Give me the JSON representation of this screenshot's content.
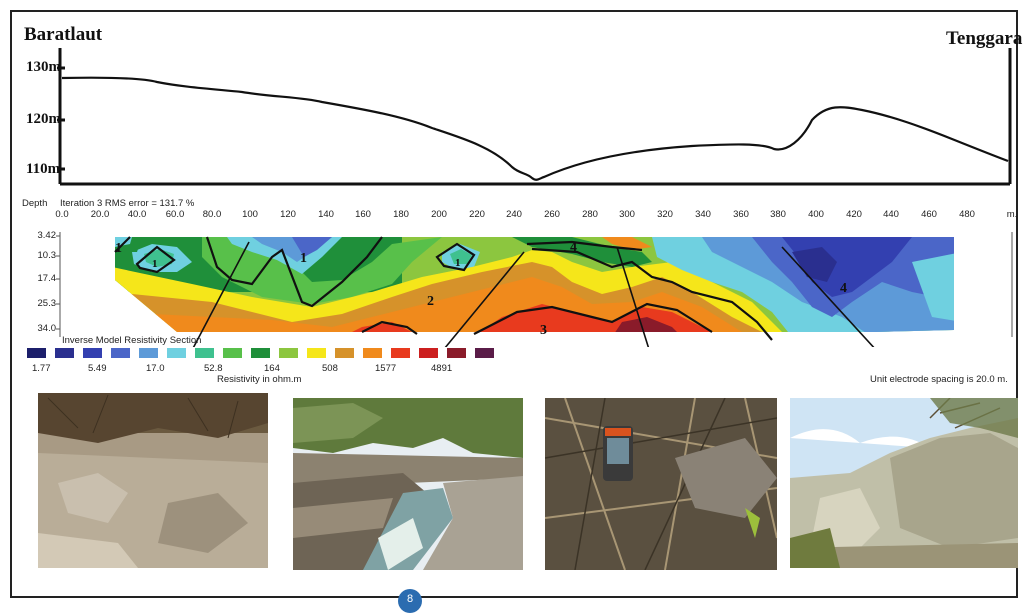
{
  "profile": {
    "left_label": "Baratlaut",
    "right_label": "Tenggara",
    "elevation_labels": [
      "130m",
      "120m",
      "110m"
    ]
  },
  "section": {
    "depth_label": "Depth",
    "iteration_text": "Iteration 3 RMS error = 131.7 %",
    "x_ticks": [
      "0.0",
      "20.0",
      "40.0",
      "60.0",
      "80.0",
      "100",
      "120",
      "140",
      "160",
      "180",
      "200",
      "220",
      "240",
      "260",
      "280",
      "300",
      "320",
      "340",
      "360",
      "380",
      "400",
      "420",
      "440",
      "460",
      "480",
      "m."
    ],
    "depth_ticks": [
      "3.42",
      "10.3",
      "17.4",
      "25.3",
      "34.0"
    ],
    "zone_labels": [
      "1",
      "1",
      "1",
      "1",
      "2",
      "3",
      "4",
      "4"
    ],
    "title": "Inverse Model Resistivity Section",
    "legend_values": [
      "1.77",
      "5.49",
      "17.0",
      "52.8",
      "164",
      "508",
      "1577",
      "4891"
    ],
    "legend_caption": "Resistivity in ohm.m",
    "electrode_spacing": "Unit electrode spacing is 20.0 m.",
    "colors": [
      "#1c1f6b",
      "#2a2f8f",
      "#3340b0",
      "#4b66c8",
      "#5d9ad8",
      "#6fd0e0",
      "#3fc18f",
      "#58c04a",
      "#1f8f3a",
      "#8cc63f",
      "#f5e61a",
      "#d6922a",
      "#f08a1c",
      "#e83a1e",
      "#cc1f1f",
      "#8a1b2a",
      "#5a1c48"
    ]
  },
  "photos": [
    {
      "name": "soil-outcrop-photo"
    },
    {
      "name": "river-gorge-photo"
    },
    {
      "name": "gps-device-photo"
    },
    {
      "name": "rock-cliff-photo"
    }
  ],
  "badge": "8"
}
